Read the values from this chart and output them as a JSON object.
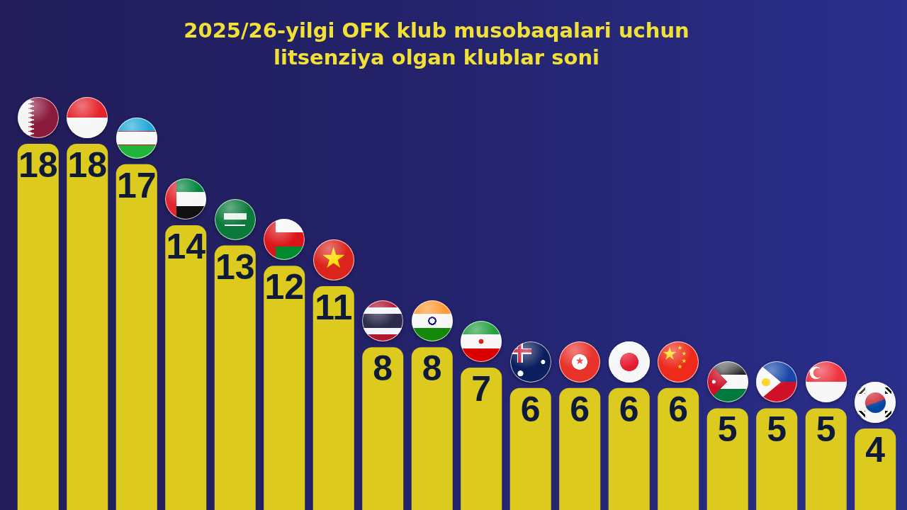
{
  "chart_data": {
    "type": "bar",
    "title": "2025/26-yilgi OFK klub musobaqalari uchun litsenziya olgan klublar soni",
    "categories": [
      null,
      null,
      null,
      null,
      null,
      null,
      null,
      null,
      null,
      null,
      null,
      null,
      null,
      null,
      null,
      null,
      null,
      null
    ],
    "values": [
      18,
      18,
      17,
      14,
      13,
      12,
      11,
      8,
      8,
      7,
      6,
      6,
      6,
      6,
      5,
      5,
      5,
      4
    ],
    "color": "#dccb1e",
    "data_labels": true,
    "tick_labels": false
  }
}
